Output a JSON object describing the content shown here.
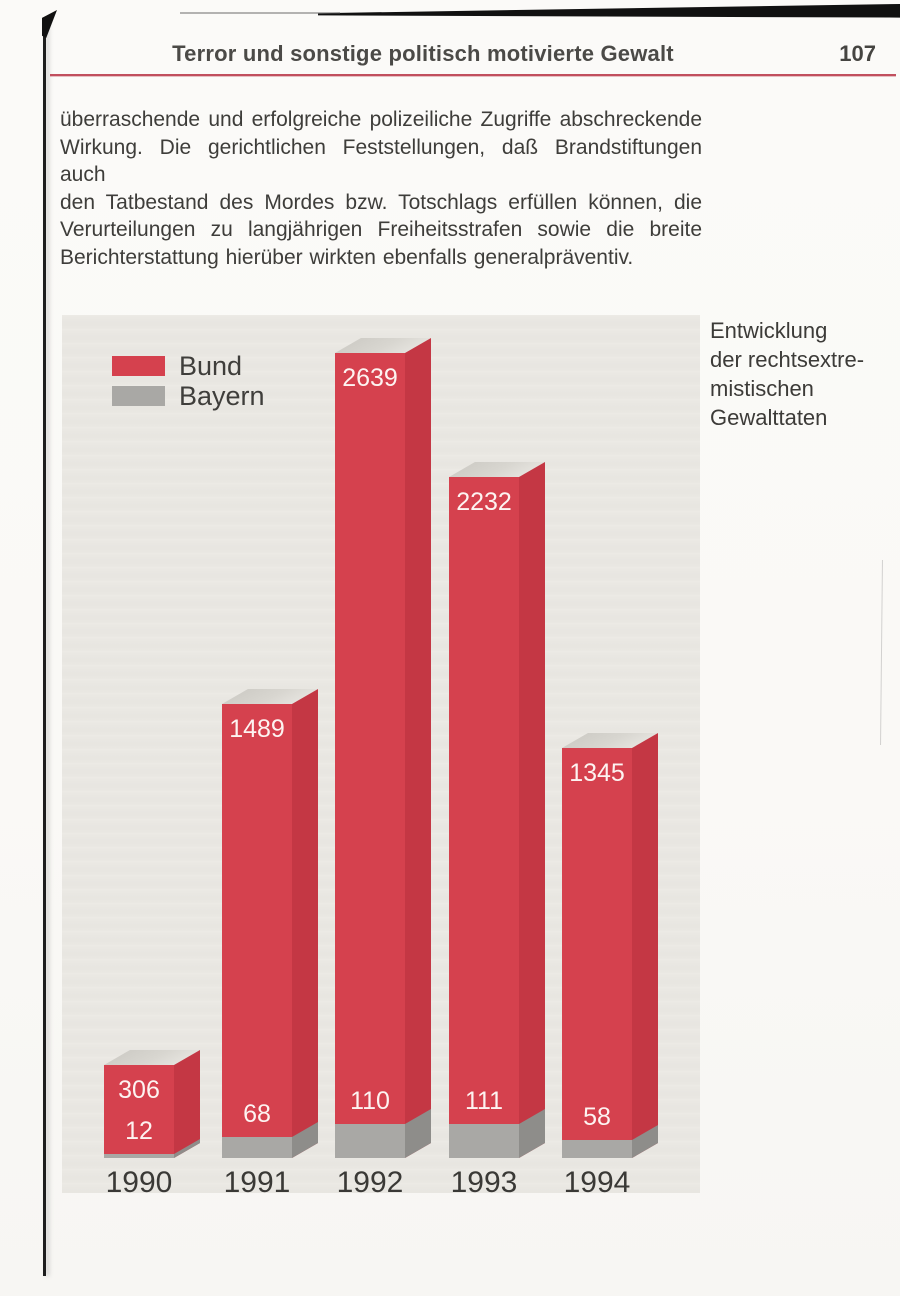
{
  "header": {
    "title": "Terror und sonstige politisch motivierte Gewalt",
    "page_number": "107"
  },
  "body": {
    "lines": [
      "überraschende und erfolgreiche polizeiliche Zugriffe abschreckende",
      "Wirkung. Die gerichtlichen Feststellungen, daß Brandstiftungen auch",
      "den Tatbestand des Mordes bzw. Totschlags erfüllen können, die",
      "Verurteilungen zu langjährigen Freiheitsstrafen sowie die breite",
      "Berichterstattung hierüber wirkten ebenfalls generalpräventiv."
    ]
  },
  "chart_data": {
    "type": "bar",
    "variant": "3d-columns, Bayern shown as bottom segment of each Bund column",
    "categories": [
      "1990",
      "1991",
      "1992",
      "1993",
      "1994"
    ],
    "series": [
      {
        "name": "Bund",
        "color": "#d5414e",
        "side_color": "#c43744",
        "values": [
          306,
          1489,
          2639,
          2232,
          1345
        ]
      },
      {
        "name": "Bayern",
        "color": "#a9a8a5",
        "side_color": "#8e8d8a",
        "values": [
          12,
          68,
          110,
          111,
          58
        ]
      }
    ],
    "title": "",
    "side_caption": "Entwicklung\nder rechtsextre-\nmistischen\nGewalttaten",
    "xlabel": "",
    "ylabel": "",
    "ylim": [
      0,
      2750
    ],
    "grid": false,
    "legend_position": "top-left",
    "value_labels": "white-on-column",
    "top_face_color": "#d8d6d0",
    "background_color": "#eae8e3"
  }
}
